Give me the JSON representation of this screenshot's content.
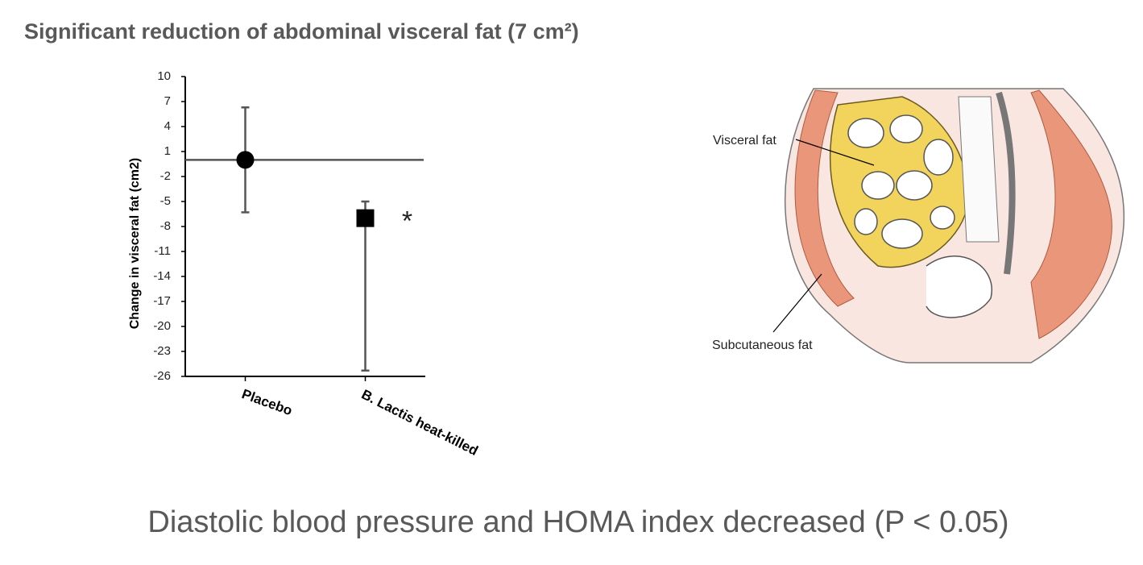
{
  "title": "Significant reduction of abdominal visceral fat (7 cm²)",
  "chart_data": {
    "type": "dot_errorbar",
    "y_label": "Change in visceral fat (cm2)",
    "categories": [
      "Placebo",
      "B. Lactis heat-killed"
    ],
    "values": [
      0,
      -7
    ],
    "error_plus": [
      6.3,
      2
    ],
    "error_minus": [
      6.3,
      18.3
    ],
    "markers": [
      "circle",
      "square"
    ],
    "color": "#000000",
    "errorbar_color": "#555555",
    "reference_line": 0,
    "annotation": "*",
    "ylim": [
      -26,
      10
    ],
    "yticks": [
      10,
      7,
      4,
      1,
      -2,
      -5,
      -8,
      -11,
      -14,
      -17,
      -20,
      -23,
      -26
    ]
  },
  "illustration": {
    "labels": [
      "Visceral fat",
      "Subcutaneous fat"
    ]
  },
  "footer": "Diastolic blood pressure and HOMA index decreased (P < 0.05)"
}
